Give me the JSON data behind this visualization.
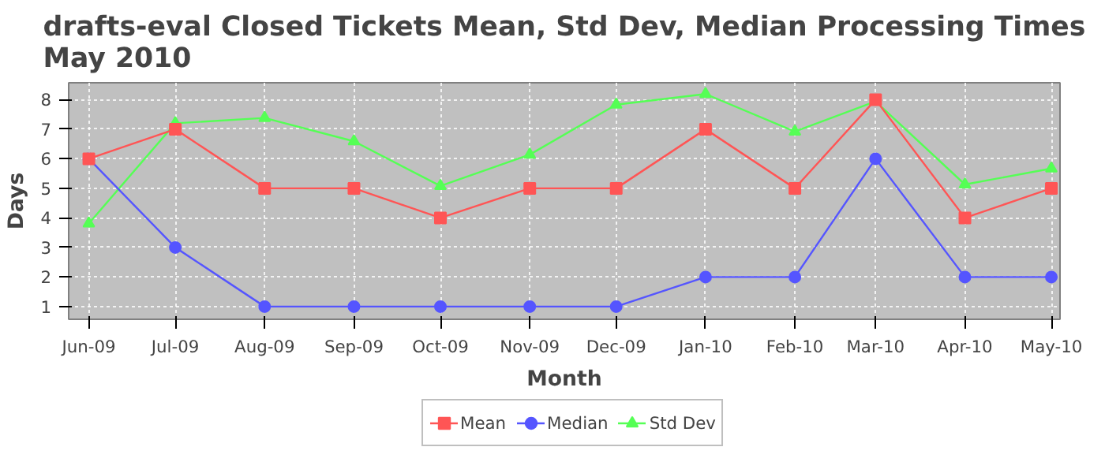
{
  "chart_data": {
    "type": "line",
    "title": "drafts-eval Closed Tickets Mean, Std Dev, Median Processing Times\nMay 2010",
    "xlabel": "Month",
    "ylabel": "Days",
    "x": [
      "2009-06",
      "2009-07",
      "2009-08",
      "2009-09",
      "2009-10",
      "2009-11",
      "2009-12",
      "2010-01",
      "2010-02",
      "2010-03",
      "2010-04",
      "2010-05"
    ],
    "xlim": [
      "2009-05-25",
      "2010-05-04"
    ],
    "xticks": [
      {
        "value": "2009-06",
        "label": "Jun-09"
      },
      {
        "value": "2009-07",
        "label": "Jul-09"
      },
      {
        "value": "2009-08",
        "label": "Aug-09"
      },
      {
        "value": "2009-09",
        "label": "Sep-09"
      },
      {
        "value": "2009-10",
        "label": "Oct-09"
      },
      {
        "value": "2009-11",
        "label": "Nov-09"
      },
      {
        "value": "2009-12",
        "label": "Dec-09"
      },
      {
        "value": "2010-01",
        "label": "Jan-10"
      },
      {
        "value": "2010-02",
        "label": "Feb-10"
      },
      {
        "value": "2010-03",
        "label": "Mar-10"
      },
      {
        "value": "2010-04",
        "label": "Apr-10"
      },
      {
        "value": "2010-05",
        "label": "May-10"
      }
    ],
    "ylim": [
      0.57,
      8.57
    ],
    "yticks": [
      1,
      2,
      3,
      4,
      5,
      6,
      7,
      8
    ],
    "grid": true,
    "legend": "bottom",
    "line_style": "solid",
    "series": [
      {
        "name": "Mean",
        "color": "#ff5555",
        "marker": "square",
        "values": [
          6,
          7,
          5,
          5,
          4,
          5,
          5,
          7,
          5,
          8,
          4,
          5
        ]
      },
      {
        "name": "Median",
        "color": "#5555ff",
        "marker": "circle",
        "values": [
          6,
          3,
          1,
          1,
          1,
          1,
          1,
          2,
          2,
          6,
          2,
          2
        ]
      },
      {
        "name": "Std Dev",
        "color": "#55ff55",
        "marker": "triangle",
        "values": [
          3.81,
          7.2,
          7.38,
          6.59,
          5.08,
          6.14,
          7.83,
          8.19,
          6.92,
          7.94,
          5.13,
          5.67
        ]
      }
    ]
  }
}
